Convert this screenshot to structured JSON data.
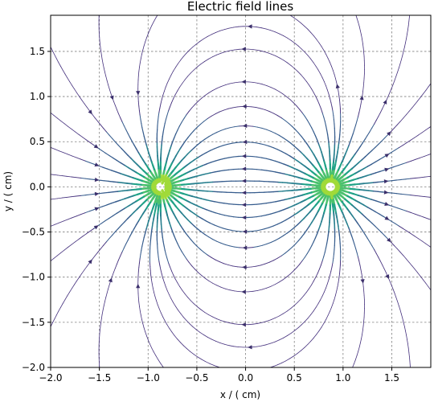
{
  "chart_data": {
    "type": "streamplot",
    "title": "Electric field lines",
    "xlabel": "x / ( cm)",
    "ylabel": "y / ( cm)",
    "xlim": [
      -2.0,
      1.9
    ],
    "ylim": [
      -2.0,
      1.9
    ],
    "xticks": [
      -2.0,
      -1.5,
      -1.0,
      -0.5,
      0.0,
      0.5,
      1.0,
      1.5
    ],
    "xtick_labels": [
      "−2.0",
      "−1.5",
      "−1.0",
      "−0.5",
      "0.0",
      "0.5",
      "1.0",
      "1.5"
    ],
    "yticks": [
      -2.0,
      -1.5,
      -1.0,
      -0.5,
      0.0,
      0.5,
      1.0,
      1.5
    ],
    "ytick_labels": [
      "−2.0",
      "−1.5",
      "−1.0",
      "−0.5",
      "0.0",
      "0.5",
      "1.0",
      "1.5"
    ],
    "grid": true,
    "grid_style": "dashed",
    "charges": [
      {
        "x": -0.87,
        "y": 0.0
      },
      {
        "x": 0.87,
        "y": 0.0
      }
    ],
    "colormap": [
      "#46327e",
      "#365c8d",
      "#277f8e",
      "#1fa187",
      "#4ac16d",
      "#a0da39"
    ],
    "arrow_color": "#3b2f6b"
  }
}
